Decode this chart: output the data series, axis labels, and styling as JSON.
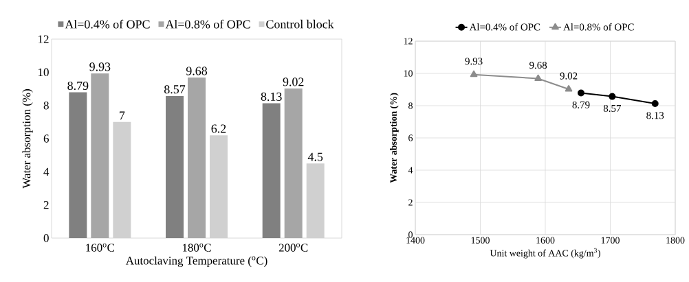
{
  "chart_data": [
    {
      "type": "bar",
      "categories": [
        "160$^{o}$C",
        "180$^{o}$C",
        "200$^{o}$C"
      ],
      "xlabel": "Autoclaving Temperature ($^{o}$C)",
      "ylabel": "Water absorption (%)",
      "ylim": [
        0,
        12
      ],
      "yticks": [
        0,
        2,
        4,
        6,
        8,
        10,
        12
      ],
      "grid": false,
      "legend": "top",
      "data_labels": true,
      "series": [
        {
          "name": "Al=0.4% of OPC",
          "color": "#808080",
          "values": [
            8.79,
            8.57,
            8.13
          ]
        },
        {
          "name": "Al=0.8% of OPC",
          "color": "#a6a6a6",
          "values": [
            9.93,
            9.68,
            9.02
          ]
        },
        {
          "name": "Control block",
          "color": "#d0d0d0",
          "values": [
            7,
            6.2,
            4.5
          ]
        }
      ]
    },
    {
      "type": "line",
      "xlabel": "Unit weight of AAC (kg/m$^{3}$)",
      "ylabel": "Water absorption (%)",
      "xlim": [
        1400,
        1800
      ],
      "xticks": [
        1400,
        1500,
        1600,
        1700,
        1800
      ],
      "ylim": [
        0,
        12
      ],
      "yticks": [
        0,
        2,
        4,
        6,
        8,
        10,
        12
      ],
      "grid": true,
      "legend": "top",
      "data_labels": true,
      "series": [
        {
          "name": "Al=0.4% of OPC",
          "color": "#000000",
          "marker": "circle",
          "x": [
            1655,
            1703,
            1769
          ],
          "values": [
            8.79,
            8.57,
            8.13
          ]
        },
        {
          "name": "Al=0.8% of OPC",
          "color": "#8c8c8c",
          "marker": "triangle",
          "x": [
            1490,
            1589,
            1636
          ],
          "values": [
            9.93,
            9.68,
            9.02
          ]
        }
      ]
    }
  ]
}
